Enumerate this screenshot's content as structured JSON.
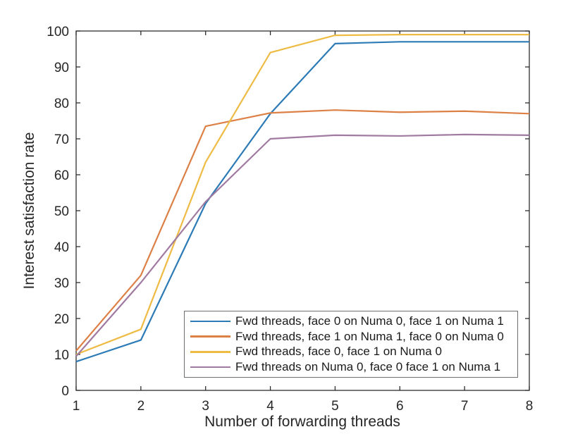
{
  "figure": {
    "background": "#ffffff",
    "axis_color": "#262626",
    "legend_border_color": "#6e6e6e"
  },
  "chart_data": {
    "type": "line",
    "title": "",
    "xlabel": "Number of forwarding threads",
    "ylabel": "Interest satisfaction rate",
    "x": [
      1,
      2,
      3,
      4,
      5,
      6,
      7,
      8
    ],
    "xlim": [
      1,
      8
    ],
    "ylim": [
      0,
      100
    ],
    "x_ticks": [
      1,
      2,
      3,
      4,
      5,
      6,
      7,
      8
    ],
    "y_ticks": [
      0,
      10,
      20,
      30,
      40,
      50,
      60,
      70,
      80,
      90,
      100
    ],
    "grid": false,
    "legend_position": "inside-bottom-right",
    "series": [
      {
        "name": "Fwd threads, face 0 on Numa 0, face 1 on Numa 1",
        "color": "#2D7BB6",
        "values": [
          8,
          14,
          52,
          77,
          96.5,
          97,
          97,
          97
        ]
      },
      {
        "name": "Fwd threads, face 1 on Numa 1, face 0 on Numa 0",
        "color": "#DD8046",
        "values": [
          11,
          32,
          73.5,
          77.2,
          78,
          77.4,
          77.7,
          77
        ]
      },
      {
        "name": "Fwd threads, face 0, face 1 on Numa 0",
        "color": "#EEBC45",
        "values": [
          10,
          17,
          63.5,
          94,
          98.8,
          99,
          99,
          99
        ]
      },
      {
        "name": "Fwd threads on Numa 0, face 0 face 1 on Numa 1",
        "color": "#A07AA0",
        "values": [
          9.5,
          30,
          52.5,
          70,
          71,
          70.8,
          71.2,
          71
        ]
      }
    ]
  }
}
